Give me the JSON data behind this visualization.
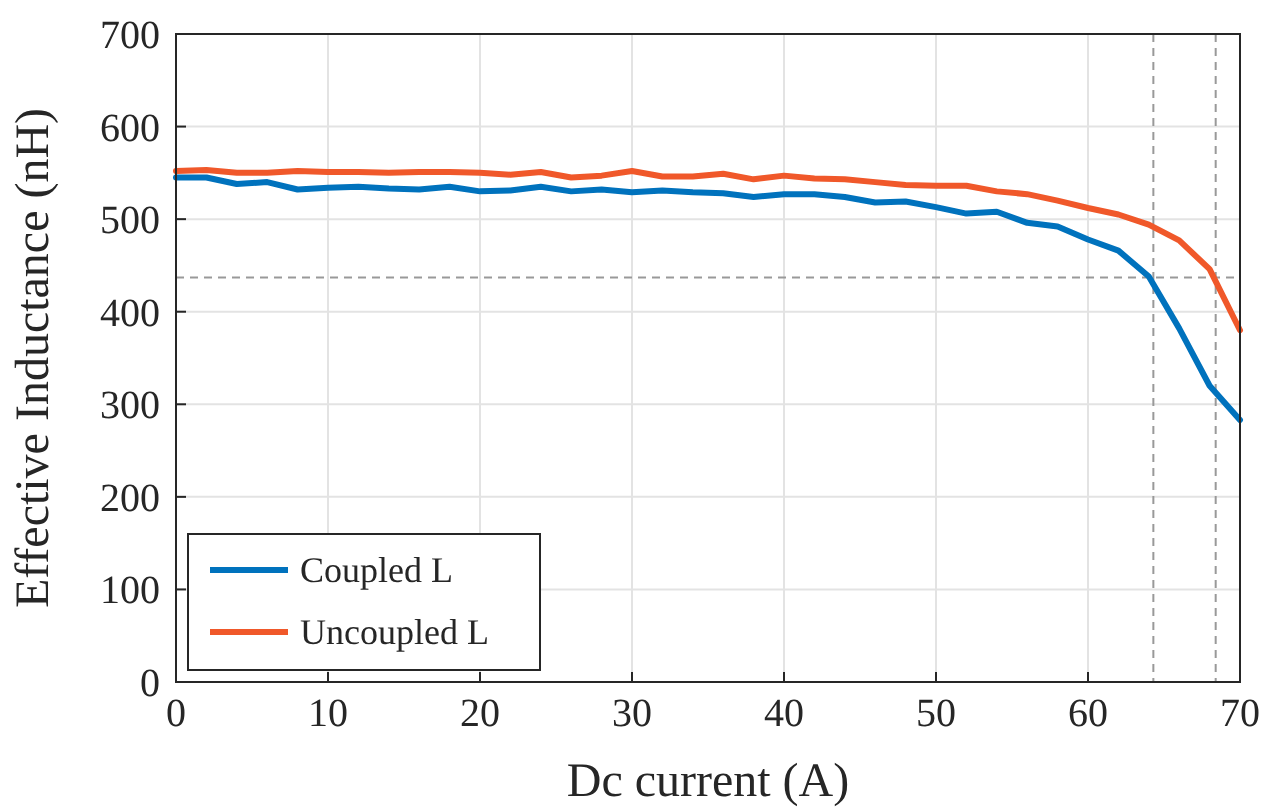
{
  "chart_data": {
    "type": "line",
    "xlabel": "Dc current (A)",
    "ylabel": "Effective Inductance (nH)",
    "x": [
      0,
      2,
      4,
      6,
      8,
      10,
      12,
      14,
      16,
      18,
      20,
      22,
      24,
      26,
      28,
      30,
      32,
      34,
      36,
      38,
      40,
      42,
      44,
      46,
      48,
      50,
      52,
      54,
      56,
      58,
      60,
      62,
      64,
      66,
      68,
      70
    ],
    "series": [
      {
        "name": "Coupled L",
        "color": "#0072bd",
        "values": [
          545,
          545,
          538,
          540,
          532,
          534,
          535,
          533,
          532,
          535,
          530,
          531,
          535,
          530,
          532,
          529,
          531,
          529,
          528,
          524,
          527,
          527,
          524,
          518,
          519,
          513,
          506,
          508,
          496,
          492,
          478,
          466,
          438,
          382,
          320,
          283
        ]
      },
      {
        "name": "Uncoupled L",
        "color": "#f0582a",
        "values": [
          552,
          553,
          550,
          550,
          552,
          551,
          551,
          550,
          551,
          551,
          550,
          548,
          551,
          545,
          547,
          552,
          546,
          546,
          549,
          543,
          547,
          544,
          543,
          540,
          537,
          536,
          536,
          530,
          527,
          520,
          512,
          505,
          494,
          477,
          446,
          380
        ]
      }
    ],
    "xlim": [
      0,
      70
    ],
    "xticks": [
      0,
      10,
      20,
      30,
      40,
      50,
      60,
      70
    ],
    "ylim": [
      0,
      700
    ],
    "yticks": [
      0,
      100,
      200,
      300,
      400,
      500,
      600,
      700
    ],
    "grid": true,
    "legend": "bottom left",
    "line_style": "solid",
    "marker": "none",
    "ref_lines": [
      {
        "axis": "y",
        "value": 437,
        "color": "#999999",
        "line_style": "dashed"
      },
      {
        "axis": "x",
        "value": 64.3,
        "color": "#999999",
        "line_style": "dashed"
      },
      {
        "axis": "x",
        "value": 68.4,
        "color": "#999999",
        "line_style": "dashed"
      }
    ]
  }
}
